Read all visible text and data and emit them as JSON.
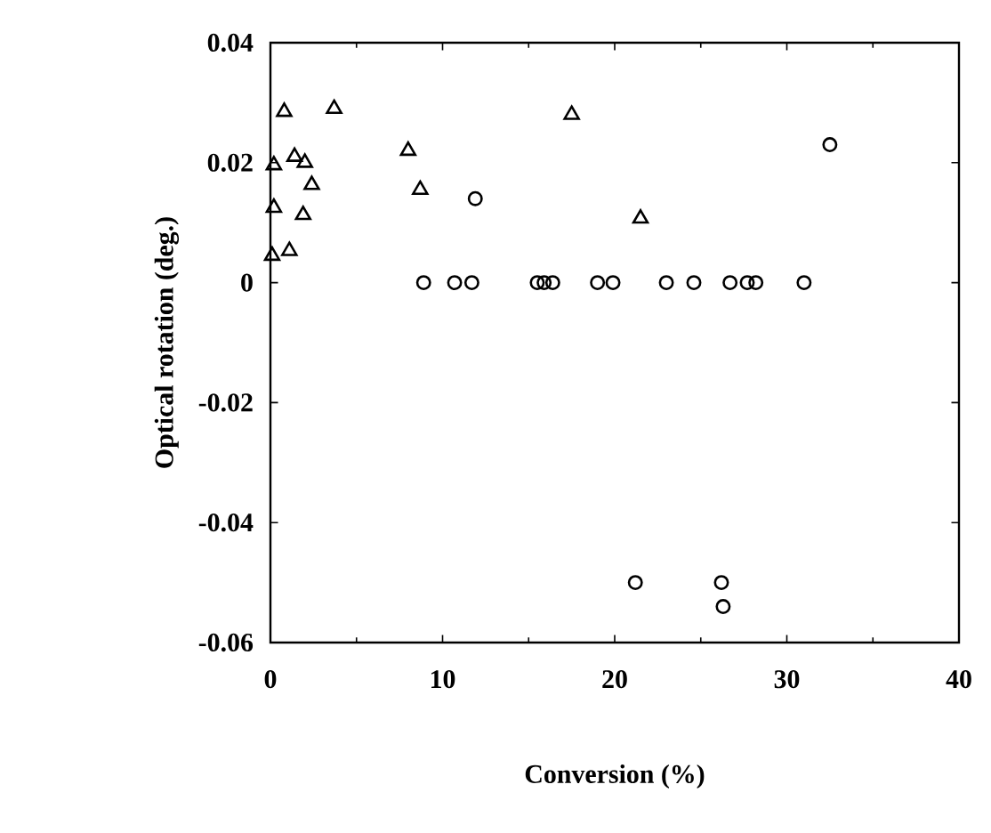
{
  "chart_data": {
    "type": "scatter",
    "xlabel": "Conversion (%)",
    "ylabel": "Optical rotation (deg.)",
    "xlim": [
      0,
      40
    ],
    "xticks": [
      0,
      10,
      20,
      30,
      40
    ],
    "ylim": [
      -0.06,
      0.04
    ],
    "yticks": [
      -0.06,
      -0.04,
      -0.02,
      0,
      0.02,
      0.04
    ],
    "series": [
      {
        "color": "#000000",
        "marker": "circle",
        "x": [
          8.9,
          10.7,
          11.7,
          15.5,
          15.9,
          16.4,
          19.0,
          19.9,
          23.0,
          24.6,
          26.7,
          27.7,
          28.2,
          31.0,
          21.2,
          26.2,
          26.3,
          11.9,
          32.5
        ],
        "values": [
          0,
          0,
          0,
          0,
          0,
          0,
          0,
          0,
          0,
          0,
          0,
          0,
          0,
          0,
          -0.05,
          -0.05,
          -0.054,
          0.014,
          0.023
        ]
      },
      {
        "color": "#000000",
        "marker": "triangle",
        "x": [
          0.8,
          3.7,
          17.5,
          8.0,
          8.7,
          1.4,
          0.2,
          2.0,
          2.4,
          0.2,
          1.9,
          1.1,
          0.1,
          21.5
        ],
        "values": [
          0.0285,
          0.029,
          0.028,
          0.022,
          0.0155,
          0.021,
          0.0196,
          0.02,
          0.0163,
          0.0125,
          0.0113,
          0.0053,
          0.0045,
          0.0107
        ]
      }
    ]
  }
}
